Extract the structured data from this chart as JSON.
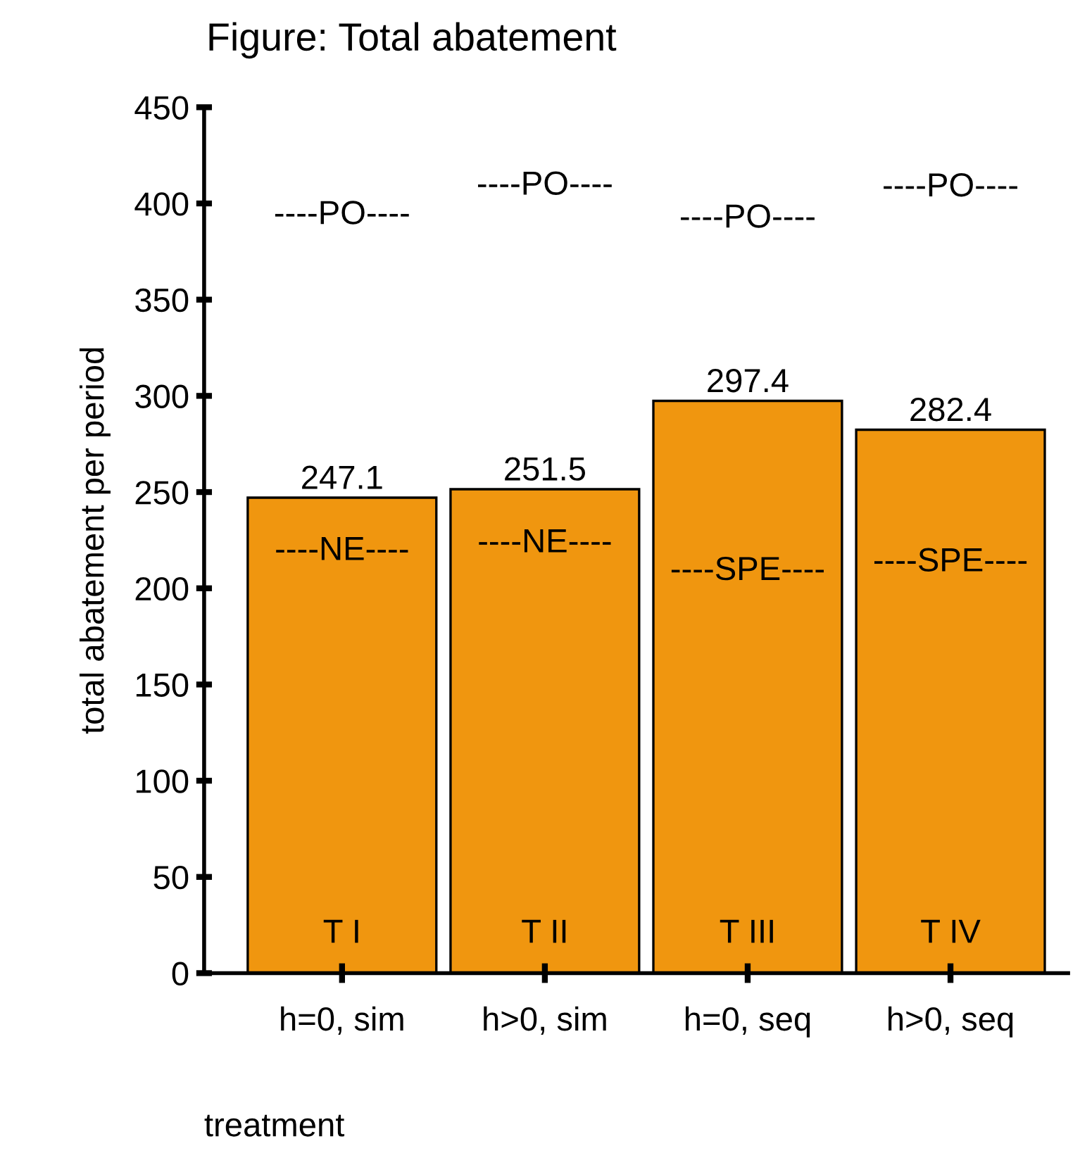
{
  "chart_data": {
    "type": "bar",
    "title": "Figure: Total abatement",
    "xlabel": "treatment",
    "ylabel": "total abatement per period",
    "categories": [
      "h=0, sim",
      "h>0, sim",
      "h=0, seq",
      "h>0, seq"
    ],
    "values": [
      247.1,
      251.5,
      297.4,
      282.4
    ],
    "color": "#f0960f",
    "data_labels": true,
    "ylim": [
      0,
      450
    ],
    "yticks": [
      0,
      50,
      100,
      150,
      200,
      250,
      300,
      350,
      400,
      450
    ],
    "grid": false,
    "annotations": [
      "----PO----",
      "----PO----",
      "----PO----",
      "----PO----",
      "----NE----",
      "----NE----",
      "----SPE----",
      "----SPE----",
      "T I",
      "T II",
      "T III",
      "T IV"
    ]
  }
}
